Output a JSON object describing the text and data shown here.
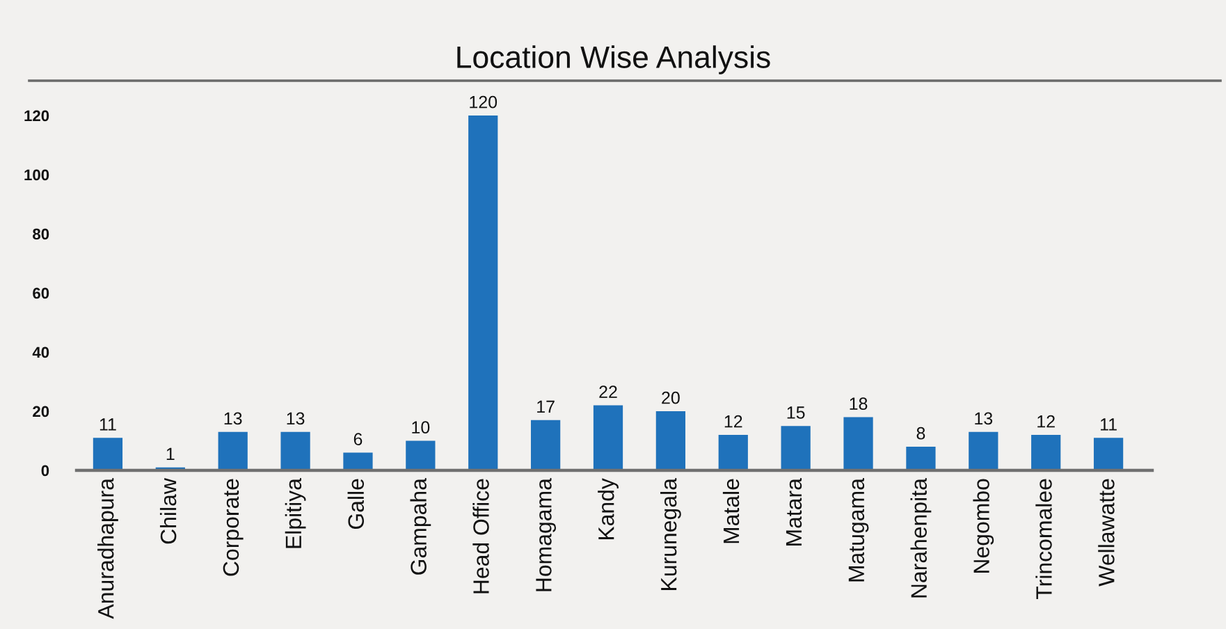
{
  "chart_data": {
    "type": "bar",
    "title": "Location Wise Analysis",
    "categories": [
      "Anuradhapura",
      "Chilaw",
      "Corporate",
      "Elpitiya",
      "Galle",
      "Gampaha",
      "Head Office",
      "Homagama",
      "Kandy",
      "Kurunegala",
      "Matale",
      "Matara",
      "Matugama",
      "Narahenpita",
      "Negombo",
      "Trincomalee",
      "Wellawatte"
    ],
    "values": [
      11,
      1,
      13,
      13,
      6,
      10,
      120,
      17,
      22,
      20,
      12,
      15,
      18,
      8,
      13,
      12,
      11
    ],
    "color": "#1f72bb",
    "ylim": [
      0,
      120
    ],
    "yticks": [
      0,
      20,
      40,
      60,
      80,
      100,
      120
    ],
    "data_labels": true
  }
}
